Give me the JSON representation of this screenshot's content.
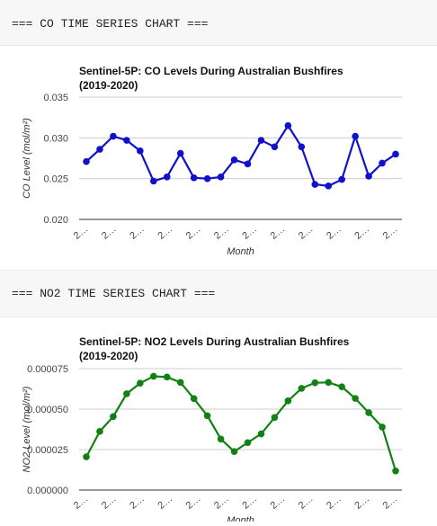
{
  "sections": [
    {
      "heading": "=== CO TIME SERIES CHART ===",
      "chart_data": {
        "type": "line",
        "title_line1": "Sentinel-5P: CO Levels During Australian Bushfires",
        "title_line2": "(2019-2020)",
        "xlabel": "Month",
        "ylabel": "CO Level (mol/m²)",
        "ylim": [
          0.02,
          0.035
        ],
        "yticks": [
          "0.035",
          "0.030",
          "0.025",
          "0.020"
        ],
        "ytick_values": [
          0.035,
          0.03,
          0.025,
          0.02
        ],
        "xtick_labels": [
          "2…",
          "2…",
          "2…",
          "2…",
          "2…",
          "2…",
          "2…",
          "2…",
          "2…",
          "2…",
          "2…",
          "2…"
        ],
        "color": "#1111cc",
        "grid": true,
        "series": [
          {
            "values": [
              0.0271,
              0.0286,
              0.0302,
              0.0297,
              0.0284,
              0.0247,
              0.0252,
              0.0281,
              0.0251,
              0.025,
              0.0252,
              0.0273,
              0.0268,
              0.0297,
              0.0289,
              0.0315,
              0.0289,
              0.0243,
              0.0241,
              0.0249,
              0.0302,
              0.0253,
              0.0269,
              0.028
            ]
          }
        ]
      }
    },
    {
      "heading": "=== NO2 TIME SERIES CHART ===",
      "chart_data": {
        "type": "line",
        "title_line1": "Sentinel-5P: NO2 Levels During Australian Bushfires",
        "title_line2": "(2019-2020)",
        "xlabel": "Month",
        "ylabel": "NO2 Level (mol/m²)",
        "ylim": [
          0.0,
          7.5e-05
        ],
        "yticks": [
          "0.000075",
          "0.000050",
          "0.000025",
          "0.000000"
        ],
        "ytick_values": [
          7.5e-05,
          5e-05,
          2.5e-05,
          0.0
        ],
        "xtick_labels": [
          "2…",
          "2…",
          "2…",
          "2…",
          "2…",
          "2…",
          "2…",
          "2…",
          "2…",
          "2…",
          "2…",
          "2…"
        ],
        "color": "#138013",
        "grid": true,
        "series": [
          {
            "values": [
              2.05e-05,
              3.62e-05,
              4.54e-05,
              5.95e-05,
              6.6e-05,
              7.03e-05,
              6.98e-05,
              6.65e-05,
              5.65e-05,
              4.59e-05,
              3.15e-05,
              2.38e-05,
              2.93e-05,
              3.47e-05,
              4.48e-05,
              5.51e-05,
              6.28e-05,
              6.63e-05,
              6.65e-05,
              6.38e-05,
              5.66e-05,
              4.78e-05,
              3.89e-05,
              1.18e-05
            ]
          }
        ]
      }
    }
  ]
}
